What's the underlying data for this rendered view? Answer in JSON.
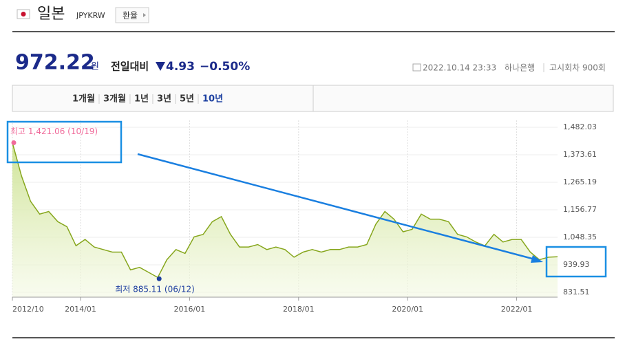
{
  "header": {
    "title": "일본",
    "code": "JPYKRW",
    "button": "환율"
  },
  "quote": {
    "price": 972.22,
    "unit": "원",
    "change_label": "전일대비",
    "change": "4.93",
    "change_pct": "−0.50%",
    "datetime": "2022.10.14 23:33",
    "bank": "하나은행",
    "round": "고시회차 900회"
  },
  "tabs": [
    "1개월",
    "3개월",
    "1년",
    "3년",
    "5년",
    "10년"
  ],
  "selected_tab": 5,
  "chart_data": {
    "type": "line",
    "x": [
      "2012/10",
      "2012/12",
      "2013/02",
      "2013/04",
      "2013/06",
      "2013/08",
      "2013/10",
      "2013/12",
      "2014/02",
      "2014/04",
      "2014/06",
      "2014/08",
      "2014/10",
      "2014/12",
      "2015/02",
      "2015/04",
      "2015/06",
      "2015/08",
      "2015/10",
      "2015/12",
      "2016/02",
      "2016/04",
      "2016/06",
      "2016/08",
      "2016/10",
      "2016/12",
      "2017/02",
      "2017/04",
      "2017/06",
      "2017/08",
      "2017/10",
      "2017/12",
      "2018/02",
      "2018/04",
      "2018/06",
      "2018/08",
      "2018/10",
      "2018/12",
      "2019/02",
      "2019/04",
      "2019/06",
      "2019/08",
      "2019/10",
      "2019/12",
      "2020/02",
      "2020/04",
      "2020/06",
      "2020/08",
      "2020/10",
      "2020/12",
      "2021/02",
      "2021/04",
      "2021/06",
      "2021/08",
      "2021/10",
      "2021/12",
      "2022/02",
      "2022/04",
      "2022/06",
      "2022/08",
      "2022/10"
    ],
    "series": [
      {
        "color": "#86a61c",
        "values": [
          1421,
          1290,
          1190,
          1140,
          1150,
          1110,
          1090,
          1015,
          1040,
          1010,
          1000,
          990,
          990,
          920,
          930,
          910,
          890,
          960,
          1000,
          985,
          1050,
          1060,
          1110,
          1130,
          1060,
          1010,
          1010,
          1020,
          1000,
          1010,
          1000,
          970,
          990,
          1000,
          990,
          1000,
          1000,
          1010,
          1010,
          1020,
          1100,
          1150,
          1120,
          1070,
          1080,
          1140,
          1120,
          1120,
          1110,
          1060,
          1050,
          1030,
          1015,
          1060,
          1030,
          1040,
          1040,
          990,
          960,
          970,
          972
        ]
      }
    ],
    "xlim": [
      "2012/10",
      "2022/10"
    ],
    "xticks": [
      "2012/10",
      "2014/01",
      "2016/01",
      "2018/01",
      "2020/01",
      "2022/01"
    ],
    "ylim": [
      831.51,
      1482.03
    ],
    "yticks": [
      {
        "value": 1482.03,
        "label": "1,482.03"
      },
      {
        "value": 1373.61,
        "label": "1,373.61"
      },
      {
        "value": 1265.19,
        "label": "1,265.19"
      },
      {
        "value": 1156.77,
        "label": "1,156.77"
      },
      {
        "value": 1048.35,
        "label": "1,048.35"
      },
      939.93,
      831.51
    ],
    "grid": true,
    "high": {
      "label": "최고 1,421.06 (10/19)",
      "x": "2012/10",
      "value": 1421.06,
      "color": "#f06a9a"
    },
    "low": {
      "label": "최저 885.11 (06/12)",
      "x": "2015/06",
      "value": 885.11,
      "color": "#1e3fa0"
    }
  }
}
